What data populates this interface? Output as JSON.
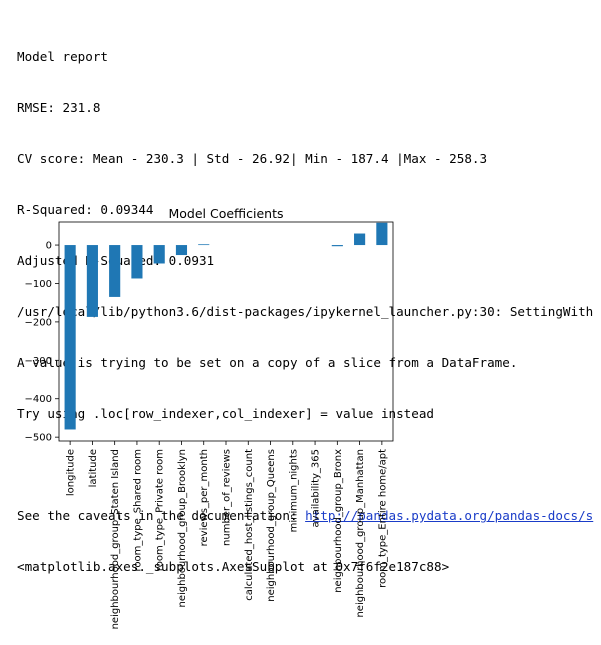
{
  "output": {
    "lines": [
      "Model report",
      "RMSE: 231.8",
      "CV score: Mean - 230.3 | Std - 26.92| Min - 187.4 |Max - 258.3",
      "R-Squared: 0.09344",
      "Adjusted R-Squared: 0.0931",
      "/usr/local/lib/python3.6/dist-packages/ipykernel_launcher.py:30: SettingWith",
      "A value is trying to be set on a copy of a slice from a DataFrame.",
      "Try using .loc[row_indexer,col_indexer] = value instead"
    ],
    "caveats_prefix": "See the caveats in the documentation: ",
    "caveats_link": "http://pandas.pydata.org/pandas-docs/s",
    "axes_repr": "<matplotlib.axes._subplots.AxesSubplot at 0x7f6f2e187c88>"
  },
  "chart_data": {
    "type": "bar",
    "title": "Model Coefficients",
    "categories": [
      "longitude",
      "latitude",
      "neighbourhood_group_Staten Island",
      "room_type_Shared room",
      "room_type_Private room",
      "neighbourhood_group_Brooklyn",
      "reviews_per_month",
      "number_of_reviews",
      "calculated_host_listings_count",
      "neighbourhood_group_Queens",
      "minimum_nights",
      "availability_365",
      "neighbourhood_group_Bronx",
      "neighbourhood_group_Manhattan",
      "room_type_Entire home/apt"
    ],
    "values": [
      -480,
      -187,
      -135,
      -87,
      -48,
      -26,
      2,
      0,
      0,
      0,
      0,
      0,
      -3,
      30,
      58
    ],
    "ylim": [
      -510,
      60
    ],
    "yticks": [
      0,
      -100,
      -200,
      -300,
      -400,
      -500
    ],
    "color": "#1f77b4",
    "grid": false
  }
}
